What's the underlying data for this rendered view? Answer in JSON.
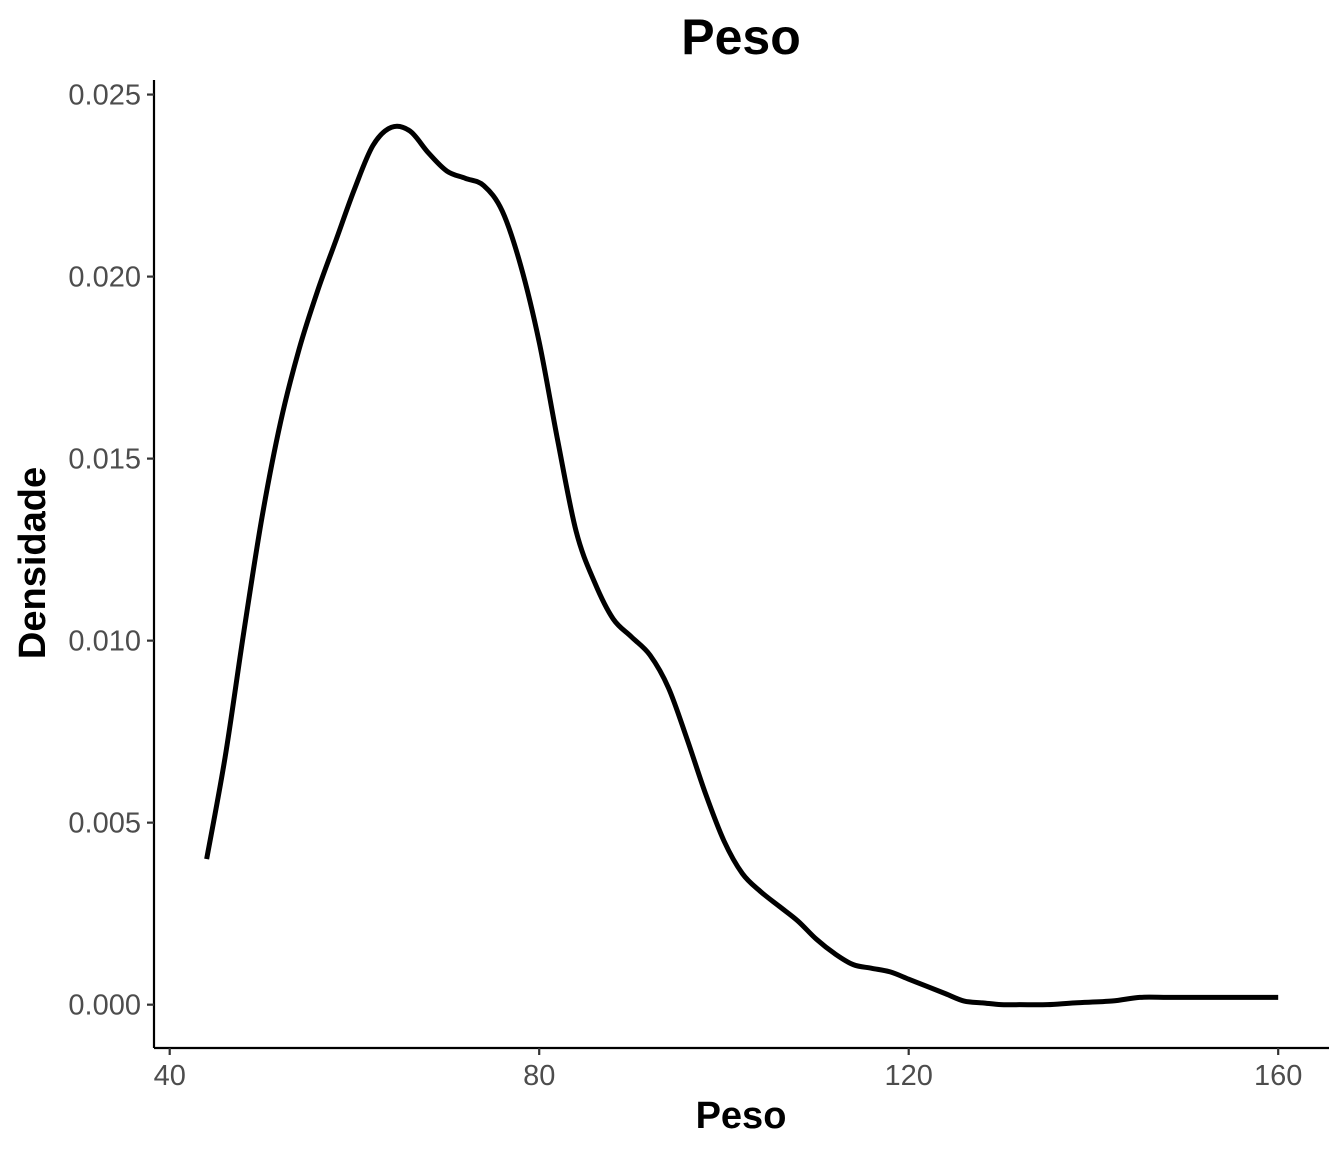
{
  "chart_data": {
    "type": "line",
    "title": "Peso",
    "xlabel": "Peso",
    "ylabel": "Densidade",
    "xlim": [
      38.3,
      165.5
    ],
    "ylim": [
      -0.00119,
      0.0254
    ],
    "x_ticks": [
      40,
      80,
      120,
      160
    ],
    "x_tick_labels": [
      "40",
      "80",
      "120",
      "160"
    ],
    "y_ticks": [
      0.0,
      0.005,
      0.01,
      0.015,
      0.02,
      0.025
    ],
    "y_tick_labels": [
      "0.000",
      "0.005",
      "0.010",
      "0.015",
      "0.020",
      "0.025"
    ],
    "grid": false,
    "line_color": "#000000",
    "series": [
      {
        "x": [
          44.0,
          46.0,
          48.0,
          50.0,
          52.0,
          54.0,
          56.0,
          58.0,
          60.0,
          62.0,
          64.0,
          66.0,
          68.0,
          70.0,
          72.0,
          74.0,
          76.0,
          78.0,
          80.0,
          82.0,
          84.0,
          86.0,
          88.0,
          90.0,
          92.0,
          94.0,
          96.0,
          98.0,
          100.0,
          102.0,
          104.0,
          106.0,
          108.0,
          110.0,
          112.0,
          114.0,
          116.0,
          118.0,
          120.0,
          122.0,
          124.0,
          126.0,
          128.0,
          130.0,
          132.0,
          135.0,
          138.0,
          142.0,
          145.0,
          148.0,
          151.0,
          154.0,
          157.0,
          160.0
        ],
        "y": [
          0.004,
          0.0068,
          0.0102,
          0.0134,
          0.016,
          0.018,
          0.0196,
          0.021,
          0.0224,
          0.0236,
          0.0241,
          0.024,
          0.0234,
          0.0229,
          0.0227,
          0.0225,
          0.0218,
          0.0203,
          0.0182,
          0.0155,
          0.013,
          0.0116,
          0.0106,
          0.0101,
          0.0096,
          0.0087,
          0.0073,
          0.0058,
          0.0045,
          0.0036,
          0.0031,
          0.0027,
          0.0023,
          0.0018,
          0.0014,
          0.0011,
          0.001,
          0.0009,
          0.0007,
          0.0005,
          0.0003,
          0.0001,
          5e-05,
          0.0,
          0.0,
          0.0,
          5e-05,
          0.0001,
          0.0002,
          0.0002,
          0.0002,
          0.0002,
          0.0002,
          0.0002
        ]
      }
    ]
  }
}
